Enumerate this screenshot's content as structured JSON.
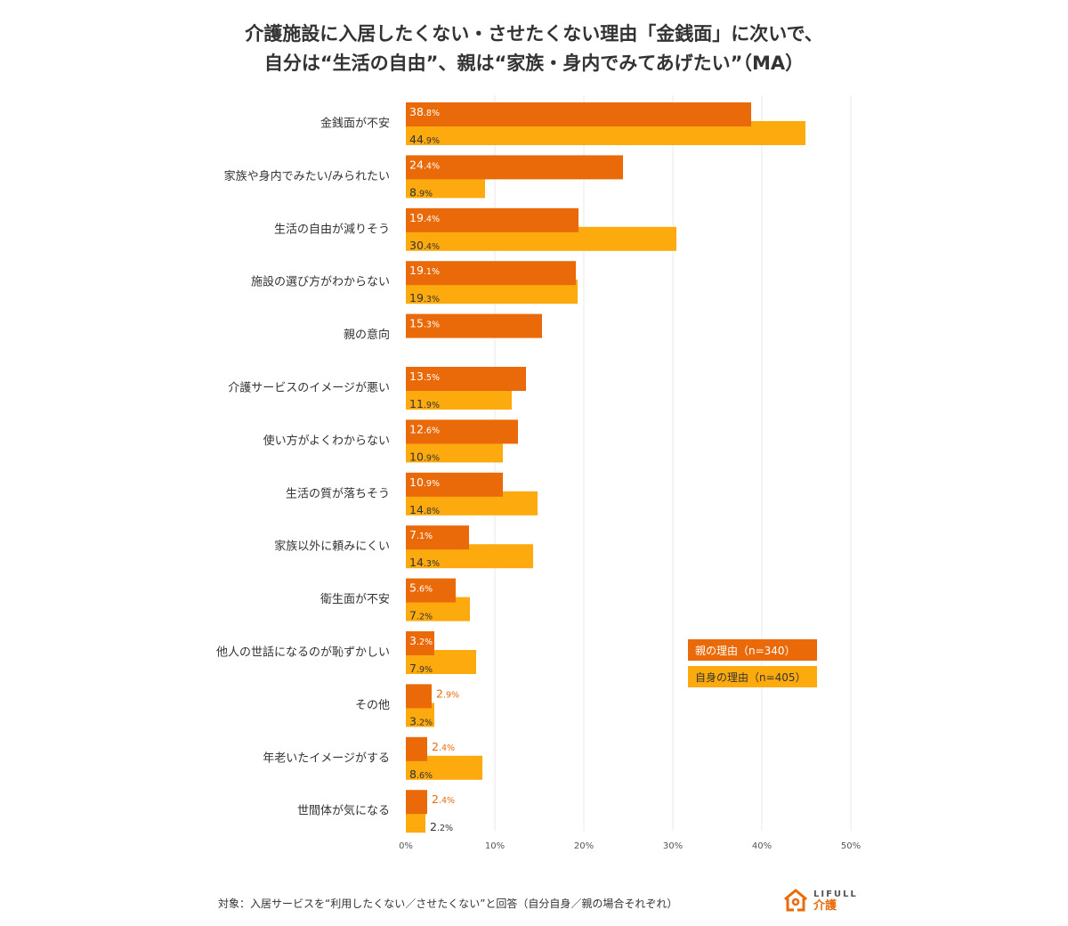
{
  "title": {
    "line1": "介護施設に入居したくない・させたくない理由「金銭面」に次いで、",
    "line2": "自分は“生活の自由”、親は“家族・身内でみてあげたい”（MA）"
  },
  "footnote": "対象：入居サービスを“利用したくない／させたくない”と回答（自分自身／親の場合それぞれ）",
  "logo": {
    "en": "LIFULL",
    "jp": "介護"
  },
  "colors": {
    "parent": "#EA6A0A",
    "self": "#FDAA0F",
    "grid": "#E8E8E8",
    "text": "#333333"
  },
  "chart_data": {
    "type": "bar",
    "orientation": "horizontal",
    "categories": [
      "金銭面が不安",
      "家族や身内でみたい/みられたい",
      "生活の自由が減りそう",
      "施設の選び方がわからない",
      "親の意向",
      "介護サービスのイメージが悪い",
      "使い方がよくわからない",
      "生活の質が落ちそう",
      "家族以外に頼みにくい",
      "衛生面が不安",
      "他人の世話になるのが恥ずかしい",
      "その他",
      "年老いたイメージがする",
      "世間体が気になる"
    ],
    "series": [
      {
        "name": "親の理由（n=340）",
        "color": "#EA6A0A",
        "values": [
          38.8,
          24.4,
          19.4,
          19.1,
          15.3,
          13.5,
          12.6,
          10.9,
          7.1,
          5.6,
          3.2,
          2.9,
          2.4,
          2.4
        ]
      },
      {
        "name": "自身の理由（n=405）",
        "color": "#FDAA0F",
        "values": [
          44.9,
          8.9,
          30.4,
          19.3,
          null,
          11.9,
          10.9,
          14.8,
          14.3,
          7.2,
          7.9,
          3.2,
          8.6,
          2.2
        ]
      }
    ],
    "xlim": [
      0,
      50
    ],
    "xticks": [
      "0%",
      "10%",
      "20%",
      "30%",
      "40%",
      "50%"
    ],
    "grid": true,
    "legend_position": "lower-right",
    "value_suffix": "%"
  }
}
